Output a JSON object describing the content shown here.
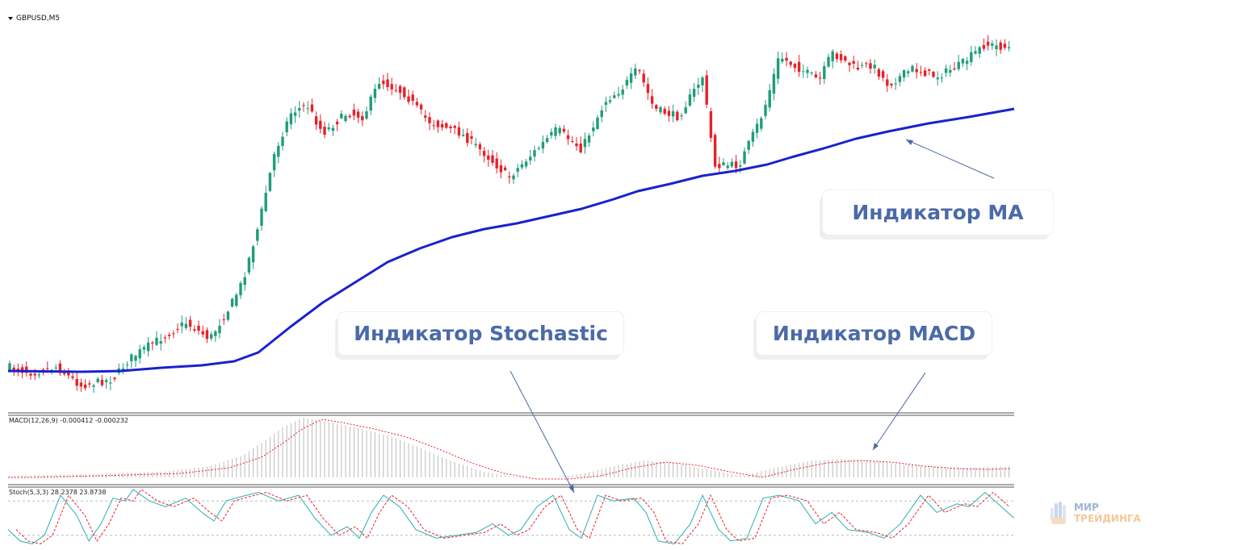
{
  "chart_data": {
    "symbol": "GBPUSD,M5",
    "panels": [
      {
        "type": "candlestick",
        "overlay": {
          "name": "MA",
          "color": "#1a22cc"
        },
        "colors": {
          "up": "#1f9c7a",
          "down": "#e8202a"
        }
      },
      {
        "type": "bar",
        "label": "MACD(12,26,9) -0.000412 -0.000232",
        "histogram_color": "#bbbbbb",
        "signal_color": "#e8202a"
      },
      {
        "type": "line",
        "label": "Stoch(5,3,3) 28.2378 23.8738",
        "main_color": "#2ab0b0",
        "signal_color": "#e8202a",
        "levels": [
          80,
          20
        ]
      }
    ]
  },
  "annotations": {
    "ma": "Индикатор MA",
    "stochastic": "Индикатор Stochastic",
    "macd": "Индикатор MACD"
  },
  "watermark": {
    "line1": "МИР",
    "line2": "ТРЕЙДИНГА"
  }
}
